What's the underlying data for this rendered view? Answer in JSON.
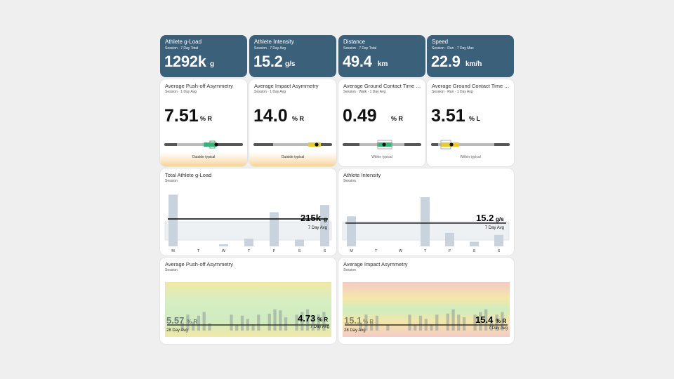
{
  "kpis": [
    {
      "title": "Athlete g-Load",
      "subtitle": "Session · 7 Day Total",
      "value": "1292k",
      "unit": "g"
    },
    {
      "title": "Athlete Intensity",
      "subtitle": "Session · 7 Day Avg",
      "value": "15.2",
      "unit": "g/s"
    },
    {
      "title": "Distance",
      "subtitle": "Session · 7 Day Total",
      "value": "49.4",
      "unit": "km"
    },
    {
      "title": "Speed",
      "subtitle": "Session · Run · 7 Day Max",
      "value": "22.9",
      "unit": "km/h"
    }
  ],
  "gauges": [
    {
      "title": "Average Push-off Asymmetry",
      "subtitle": "Session · 1 Day Avg",
      "value": "7.51",
      "unit": "% R",
      "status": "Outside typical",
      "marker_fraction": 0.63
    },
    {
      "title": "Average Impact Asymmetry",
      "subtitle": "Session · 1 Day Avg",
      "value": "14.0",
      "unit": "% R",
      "status": "Outside typical",
      "marker_fraction": 0.75
    },
    {
      "title": "Average Ground Contact Time Asymmetry",
      "subtitle": "Session · Walk · 1 Day Avg",
      "value": "0.49",
      "unit": "% R",
      "status": "Within typical",
      "marker_fraction": 0.51
    },
    {
      "title": "Average Ground Contact Time Asymmetry",
      "subtitle": "Session · Run · 1 Day Avg",
      "value": "3.51",
      "unit": "% L",
      "status": "Within typical",
      "marker_fraction": 0.23
    }
  ],
  "weekly": [
    {
      "title": "Total Athlete g-Load",
      "subtitle": "Session",
      "value": "215k",
      "unit": "g",
      "avg_label": "7 Day Avg"
    },
    {
      "title": "Athlete Intensity",
      "subtitle": "Session",
      "value": "15.2",
      "unit": "g/s",
      "avg_label": "7 Day Avg"
    }
  ],
  "trend": [
    {
      "title": "Average Push-off Asymmetry",
      "subtitle": "Session",
      "left_value": "5.57",
      "left_unit": "% R",
      "left_label": "28 Day Avg",
      "right_value": "4.73",
      "right_unit": "% R",
      "right_label": "7 Day Avg"
    },
    {
      "title": "Average Impact Asymmetry",
      "subtitle": "Session",
      "left_value": "15.1",
      "left_unit": "% R",
      "left_label": "28 Day Avg",
      "right_value": "15.4",
      "right_unit": "% R",
      "right_label": "7 Day Avg"
    }
  ],
  "chart_data": [
    {
      "type": "bar",
      "title": "Total Athlete g-Load",
      "categories": [
        "M",
        "T",
        "W",
        "T",
        "F",
        "S",
        "S"
      ],
      "values": [
        100,
        0,
        4,
        15,
        66,
        13,
        80
      ],
      "avg": 53,
      "ylim": [
        0,
        110
      ]
    },
    {
      "type": "bar",
      "title": "Athlete Intensity",
      "categories": [
        "M",
        "T",
        "W",
        "T",
        "F",
        "S",
        "S"
      ],
      "values": [
        58,
        0,
        0,
        95,
        26,
        9,
        22
      ],
      "avg": 45,
      "ylim": [
        0,
        110
      ]
    },
    {
      "type": "bar",
      "title": "Average Push-off Asymmetry",
      "values": [
        0,
        0,
        15,
        30,
        16,
        28,
        35,
        14,
        0,
        0,
        0,
        30,
        10,
        28,
        22,
        12,
        30,
        0,
        32,
        40,
        38,
        25,
        0,
        30,
        35,
        40,
        25,
        30,
        35
      ],
      "ylim": [
        0,
        45
      ]
    },
    {
      "type": "bar",
      "title": "Average Impact Asymmetry",
      "values": [
        0,
        0,
        15,
        30,
        16,
        28,
        0,
        10,
        0,
        0,
        0,
        30,
        10,
        28,
        22,
        12,
        30,
        0,
        32,
        40,
        30,
        25,
        0,
        30,
        35,
        40,
        20,
        30,
        35
      ],
      "ylim": [
        0,
        45
      ]
    }
  ]
}
